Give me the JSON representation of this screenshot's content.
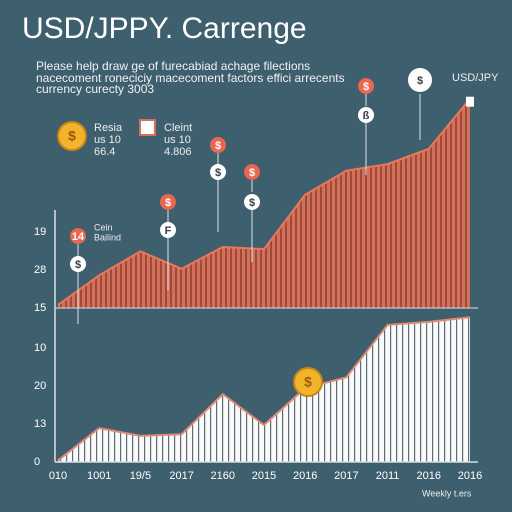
{
  "title": "USD/JPPY. Carrenge",
  "subtitle": [
    "Please help draw ge of furecabiad achage filections",
    "nacecoment roneciciy macecoment factors effici arrecents",
    "currency curecty 3003"
  ],
  "legend": [
    {
      "label": "Resia",
      "line1": "us 10",
      "line2": "66.4"
    },
    {
      "label": "Cleint",
      "line1": "us 10",
      "line2": "4.806"
    }
  ],
  "series_label": "USD/JPY",
  "note": [
    "Cein",
    "Bailind"
  ],
  "pins": [
    "14",
    "$",
    "$",
    "F",
    "$",
    "$",
    "$",
    "$",
    "$",
    "ß",
    "$"
  ],
  "coin": "$",
  "footer": "Weekly t.ers",
  "chart_data": [
    {
      "type": "area",
      "values": [
        1.4,
        15,
        26,
        18,
        28,
        27,
        52,
        63,
        66,
        73,
        96
      ],
      "color": "#c8644f",
      "ylim": [
        0,
        100
      ],
      "y_labels": [
        "15",
        "28",
        "19"
      ]
    },
    {
      "type": "area",
      "values": [
        1,
        22,
        17,
        18,
        44,
        24,
        48,
        55,
        89,
        91,
        94
      ],
      "color": "#ffffff",
      "ylim": [
        0,
        100
      ],
      "y_labels": [
        "0",
        "13",
        "20",
        "10"
      ],
      "categories": [
        "010",
        "1001",
        "19/5",
        "2017",
        "2160",
        "2015",
        "2016",
        "2017",
        "2011",
        "2016",
        "2016"
      ]
    }
  ]
}
